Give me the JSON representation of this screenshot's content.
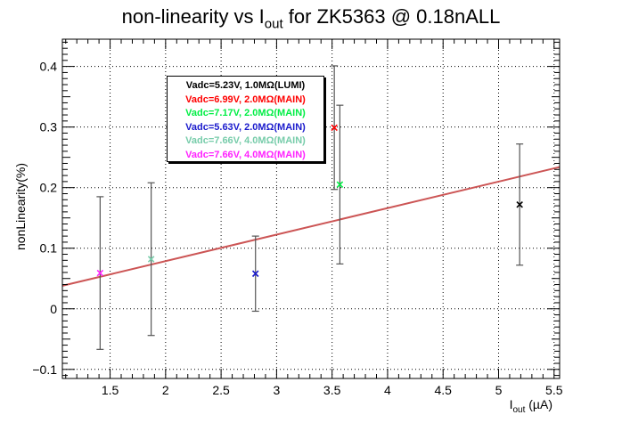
{
  "chart_data": {
    "type": "scatter",
    "title": {
      "prefix": "non-linearity vs I",
      "sub": "out",
      "suffix": " for ZK5363 @ 0.18nALL"
    },
    "xlabel": {
      "base": "I",
      "sub": "out",
      "rest": " (µA)"
    },
    "ylabel": "nonLinearity(%)",
    "xlim": [
      1.07,
      5.55
    ],
    "ylim": [
      -0.115,
      0.445
    ],
    "grid": true,
    "legend_placement": "top-left",
    "xticks": [
      1.5,
      2,
      2.5,
      3,
      3.5,
      4,
      4.5,
      5,
      5.5
    ],
    "xtick_labels": [
      "1.5",
      "2",
      "2.5",
      "3",
      "3.5",
      "4",
      "4.5",
      "5",
      "5.5"
    ],
    "yticks": [
      -0.1,
      0,
      0.1,
      0.2,
      0.3,
      0.4
    ],
    "ytick_labels": [
      "−0.1",
      "0",
      "0.1",
      "0.2",
      "0.3",
      "0.4"
    ],
    "series": [
      {
        "name": "Vadc=5.23V, 1.0MΩ(LUMI)",
        "color": "#000000",
        "x": 5.19,
        "y": 0.172,
        "err": 0.1
      },
      {
        "name": "Vadc=6.99V, 2.0MΩ(MAIN)",
        "color": "#ff0000",
        "x": 3.52,
        "y": 0.299,
        "err": 0.102
      },
      {
        "name": "Vadc=7.17V, 2.0MΩ(MAIN)",
        "color": "#00ee44",
        "x": 3.57,
        "y": 0.205,
        "err": 0.131
      },
      {
        "name": "Vadc=5.63V, 2.0MΩ(MAIN)",
        "color": "#1a1acc",
        "x": 2.81,
        "y": 0.058,
        "err": 0.062
      },
      {
        "name": "Vadc=7.66V, 4.0MΩ(MAIN)",
        "color": "#77ccaa",
        "x": 1.87,
        "y": 0.082,
        "err": 0.126
      },
      {
        "name": "Vadc=7.66V, 4.0MΩ(MAIN)",
        "color": "#ff22ff",
        "x": 1.41,
        "y": 0.059,
        "err": 0.126
      }
    ],
    "fit": {
      "color": "#cc5555",
      "x": [
        1.07,
        5.55
      ],
      "y": [
        0.038,
        0.234
      ]
    }
  }
}
